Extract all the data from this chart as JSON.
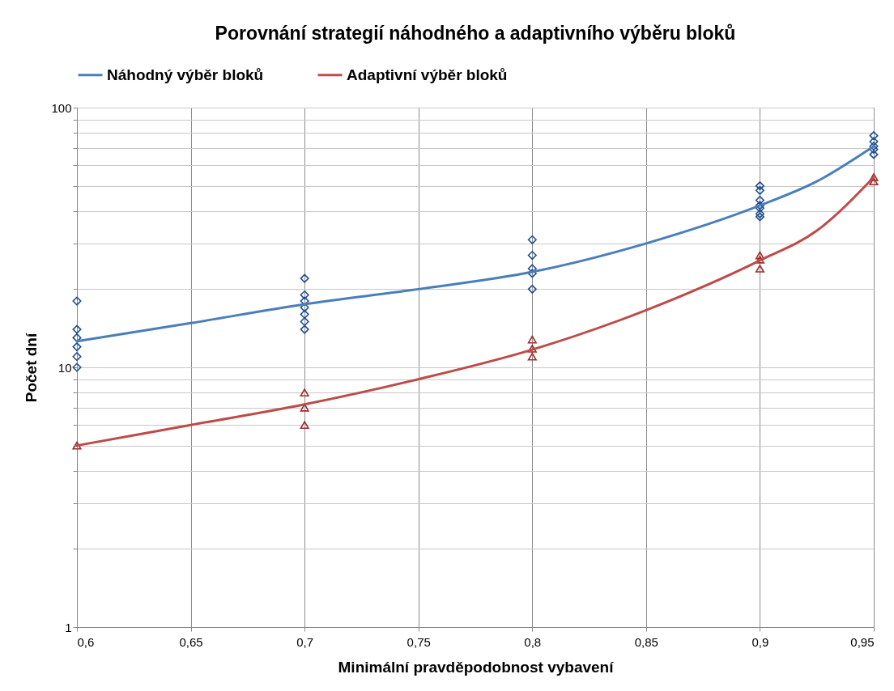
{
  "chart_data": {
    "type": "line",
    "title": "Porovnání strategií náhodného a adaptivního výběru bloků",
    "xlabel": "Minimální pravděpodobnost vybavení",
    "ylabel": "Počet dní",
    "log": "y",
    "grid": true,
    "legend": "top",
    "xlim": [
      0.6,
      0.95
    ],
    "ylim": [
      1,
      100
    ],
    "xticks": [
      {
        "value": 0.6,
        "label": "0,6"
      },
      {
        "value": 0.65,
        "label": "0,65"
      },
      {
        "value": 0.7,
        "label": "0,7"
      },
      {
        "value": 0.75,
        "label": "0,75"
      },
      {
        "value": 0.8,
        "label": "0,8"
      },
      {
        "value": 0.85,
        "label": "0,85"
      },
      {
        "value": 0.9,
        "label": "0,9"
      },
      {
        "value": 0.95,
        "label": "0,95"
      }
    ],
    "yticks": [
      1,
      {
        "value": 2,
        "label": null
      },
      {
        "value": 3,
        "label": null
      },
      {
        "value": 4,
        "label": null
      },
      {
        "value": 5,
        "label": null
      },
      {
        "value": 6,
        "label": null
      },
      {
        "value": 7,
        "label": null
      },
      {
        "value": 8,
        "label": null
      },
      {
        "value": 9,
        "label": null
      },
      10,
      {
        "value": 20,
        "label": null
      },
      {
        "value": 30,
        "label": null
      },
      {
        "value": 40,
        "label": null
      },
      {
        "value": 50,
        "label": null
      },
      {
        "value": 60,
        "label": null
      },
      {
        "value": 70,
        "label": null
      },
      {
        "value": 80,
        "label": null
      },
      {
        "value": 90,
        "label": null
      },
      100
    ],
    "series": [
      {
        "type": "scatter",
        "marker": "diamond",
        "color": "#1f4e8c",
        "x": [
          0.6,
          0.6,
          0.6,
          0.6,
          0.6,
          0.6,
          0.7,
          0.7,
          0.7,
          0.7,
          0.7,
          0.7,
          0.7,
          0.8,
          0.8,
          0.8,
          0.8,
          0.8,
          0.9,
          0.9,
          0.9,
          0.9,
          0.9,
          0.9,
          0.9,
          0.95,
          0.95,
          0.95,
          0.95,
          0.95
        ],
        "values": [
          18,
          14,
          13,
          12,
          11,
          10,
          22,
          19,
          18,
          17,
          16,
          15,
          14,
          31,
          27,
          24,
          23,
          20,
          50,
          48,
          44,
          42,
          41,
          39,
          38,
          78,
          74,
          71,
          69,
          66
        ]
      },
      {
        "type": "scatter",
        "marker": "triangle",
        "color": "#9b2d2a",
        "x": [
          0.6,
          0.7,
          0.7,
          0.7,
          0.8,
          0.8,
          0.8,
          0.9,
          0.9,
          0.9,
          0.95,
          0.95
        ],
        "values": [
          5,
          8,
          7,
          6,
          12.8,
          11.8,
          11,
          27,
          26,
          24,
          54,
          52
        ]
      },
      {
        "type": "line",
        "name": "Náhodný výběr bloků",
        "color": "#4a7ebb",
        "x": [
          0.6,
          0.65,
          0.7,
          0.75,
          0.8,
          0.85,
          0.9,
          0.925,
          0.95
        ],
        "values": [
          12.6,
          14.8,
          17.5,
          20,
          23.3,
          30,
          42,
          52,
          71
        ]
      },
      {
        "type": "line",
        "name": "Adaptivní výběr bloků",
        "color": "#be4b48",
        "x": [
          0.6,
          0.65,
          0.7,
          0.75,
          0.8,
          0.85,
          0.9,
          0.925,
          0.95
        ],
        "values": [
          5,
          6,
          7.2,
          9,
          11.7,
          16.6,
          25.8,
          33.6,
          54
        ]
      }
    ]
  }
}
